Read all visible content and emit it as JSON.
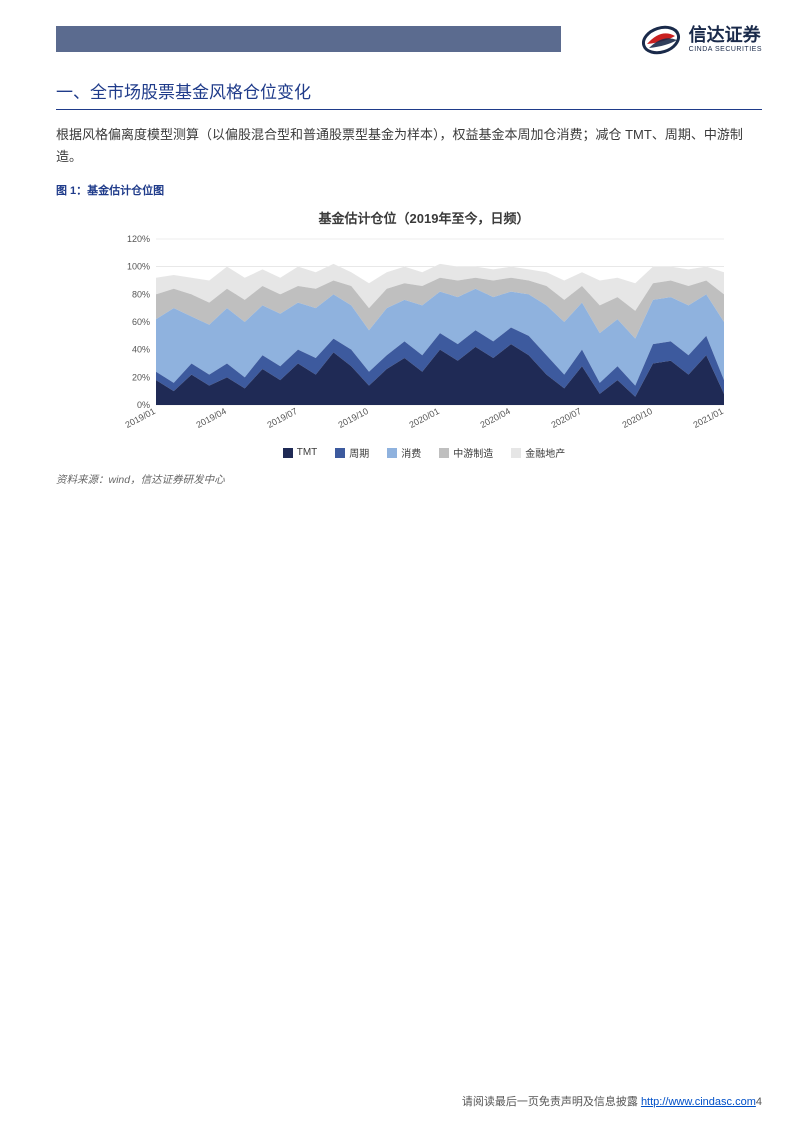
{
  "header": {
    "bar_color": "#5b6b8f",
    "logo_cn": "信达证券",
    "logo_en": "CINDA SECURITIES"
  },
  "section": {
    "heading": "一、全市场股票基金风格仓位变化",
    "paragraph": "根据风格偏离度模型测算（以偏股混合型和普通股票型基金为样本），权益基金本周加仓消费；减仓 TMT、周期、中游制造。",
    "figure_caption": "图 1：基金估计仓位图",
    "source": "资料来源：wind，信达证券研发中心"
  },
  "chart": {
    "type": "stacked-area",
    "title": "基金估计仓位（2019年至今，日频）",
    "title_fontsize": 13,
    "background_color": "#ffffff",
    "grid_color": "#d9d9d9",
    "axis_color": "#555555",
    "label_fontsize": 9,
    "yaxis": {
      "min": 0,
      "max": 120,
      "ticks": [
        0,
        20,
        40,
        60,
        80,
        100,
        120
      ],
      "tick_labels": [
        "0%",
        "20%",
        "40%",
        "60%",
        "80%",
        "100%",
        "120%"
      ]
    },
    "xaxis": {
      "labels": [
        "2019/01",
        "2019/04",
        "2019/07",
        "2019/10",
        "2020/01",
        "2020/04",
        "2020/07",
        "2020/10",
        "2021/01"
      ]
    },
    "series": [
      {
        "name": "TMT",
        "color": "#1f2a55"
      },
      {
        "name": "周期",
        "color": "#3d5a9e"
      },
      {
        "name": "消费",
        "color": "#8fb2de"
      },
      {
        "name": "中游制造",
        "color": "#bfbfbf"
      },
      {
        "name": "金融地产",
        "color": "#e6e6e6"
      }
    ],
    "note": "Cumulative tops per x index (percent). b1..b5 correspond to TMT/周期/消费/中游制造/金融地产 cumulative.",
    "stacked_tops": [
      {
        "x": 0,
        "b1": 18,
        "b2": 24,
        "b3": 62,
        "b4": 80,
        "b5": 92
      },
      {
        "x": 1,
        "b1": 10,
        "b2": 16,
        "b3": 70,
        "b4": 84,
        "b5": 94
      },
      {
        "x": 2,
        "b1": 22,
        "b2": 30,
        "b3": 64,
        "b4": 80,
        "b5": 92
      },
      {
        "x": 3,
        "b1": 14,
        "b2": 22,
        "b3": 58,
        "b4": 74,
        "b5": 90
      },
      {
        "x": 4,
        "b1": 20,
        "b2": 30,
        "b3": 70,
        "b4": 84,
        "b5": 100
      },
      {
        "x": 5,
        "b1": 12,
        "b2": 20,
        "b3": 60,
        "b4": 76,
        "b5": 92
      },
      {
        "x": 6,
        "b1": 26,
        "b2": 36,
        "b3": 72,
        "b4": 86,
        "b5": 98
      },
      {
        "x": 7,
        "b1": 18,
        "b2": 28,
        "b3": 66,
        "b4": 80,
        "b5": 92
      },
      {
        "x": 8,
        "b1": 30,
        "b2": 40,
        "b3": 74,
        "b4": 86,
        "b5": 100
      },
      {
        "x": 9,
        "b1": 22,
        "b2": 34,
        "b3": 70,
        "b4": 84,
        "b5": 96
      },
      {
        "x": 10,
        "b1": 38,
        "b2": 48,
        "b3": 80,
        "b4": 90,
        "b5": 102
      },
      {
        "x": 11,
        "b1": 28,
        "b2": 40,
        "b3": 72,
        "b4": 86,
        "b5": 96
      },
      {
        "x": 12,
        "b1": 14,
        "b2": 24,
        "b3": 54,
        "b4": 70,
        "b5": 88
      },
      {
        "x": 13,
        "b1": 26,
        "b2": 36,
        "b3": 70,
        "b4": 84,
        "b5": 96
      },
      {
        "x": 14,
        "b1": 34,
        "b2": 46,
        "b3": 76,
        "b4": 88,
        "b5": 100
      },
      {
        "x": 15,
        "b1": 24,
        "b2": 36,
        "b3": 72,
        "b4": 86,
        "b5": 96
      },
      {
        "x": 16,
        "b1": 40,
        "b2": 52,
        "b3": 82,
        "b4": 92,
        "b5": 102
      },
      {
        "x": 17,
        "b1": 32,
        "b2": 44,
        "b3": 78,
        "b4": 90,
        "b5": 100
      },
      {
        "x": 18,
        "b1": 42,
        "b2": 54,
        "b3": 84,
        "b4": 92,
        "b5": 100
      },
      {
        "x": 19,
        "b1": 34,
        "b2": 46,
        "b3": 78,
        "b4": 90,
        "b5": 98
      },
      {
        "x": 20,
        "b1": 44,
        "b2": 56,
        "b3": 82,
        "b4": 92,
        "b5": 100
      },
      {
        "x": 21,
        "b1": 36,
        "b2": 50,
        "b3": 80,
        "b4": 90,
        "b5": 98
      },
      {
        "x": 22,
        "b1": 22,
        "b2": 36,
        "b3": 72,
        "b4": 86,
        "b5": 96
      },
      {
        "x": 23,
        "b1": 12,
        "b2": 22,
        "b3": 60,
        "b4": 76,
        "b5": 90
      },
      {
        "x": 24,
        "b1": 28,
        "b2": 40,
        "b3": 74,
        "b4": 86,
        "b5": 96
      },
      {
        "x": 25,
        "b1": 8,
        "b2": 16,
        "b3": 52,
        "b4": 72,
        "b5": 90
      },
      {
        "x": 26,
        "b1": 18,
        "b2": 28,
        "b3": 62,
        "b4": 78,
        "b5": 92
      },
      {
        "x": 27,
        "b1": 6,
        "b2": 14,
        "b3": 48,
        "b4": 68,
        "b5": 88
      },
      {
        "x": 28,
        "b1": 30,
        "b2": 44,
        "b3": 76,
        "b4": 88,
        "b5": 100
      },
      {
        "x": 29,
        "b1": 32,
        "b2": 46,
        "b3": 78,
        "b4": 90,
        "b5": 100
      },
      {
        "x": 30,
        "b1": 22,
        "b2": 36,
        "b3": 72,
        "b4": 86,
        "b5": 98
      },
      {
        "x": 31,
        "b1": 36,
        "b2": 50,
        "b3": 80,
        "b4": 90,
        "b5": 100
      },
      {
        "x": 32,
        "b1": 8,
        "b2": 18,
        "b3": 60,
        "b4": 80,
        "b5": 96
      }
    ]
  },
  "footer": {
    "text_prefix": "请阅读最后一页免责声明及信息披露 ",
    "link_text": "http://www.cindasc.com",
    "page_num": "4"
  }
}
